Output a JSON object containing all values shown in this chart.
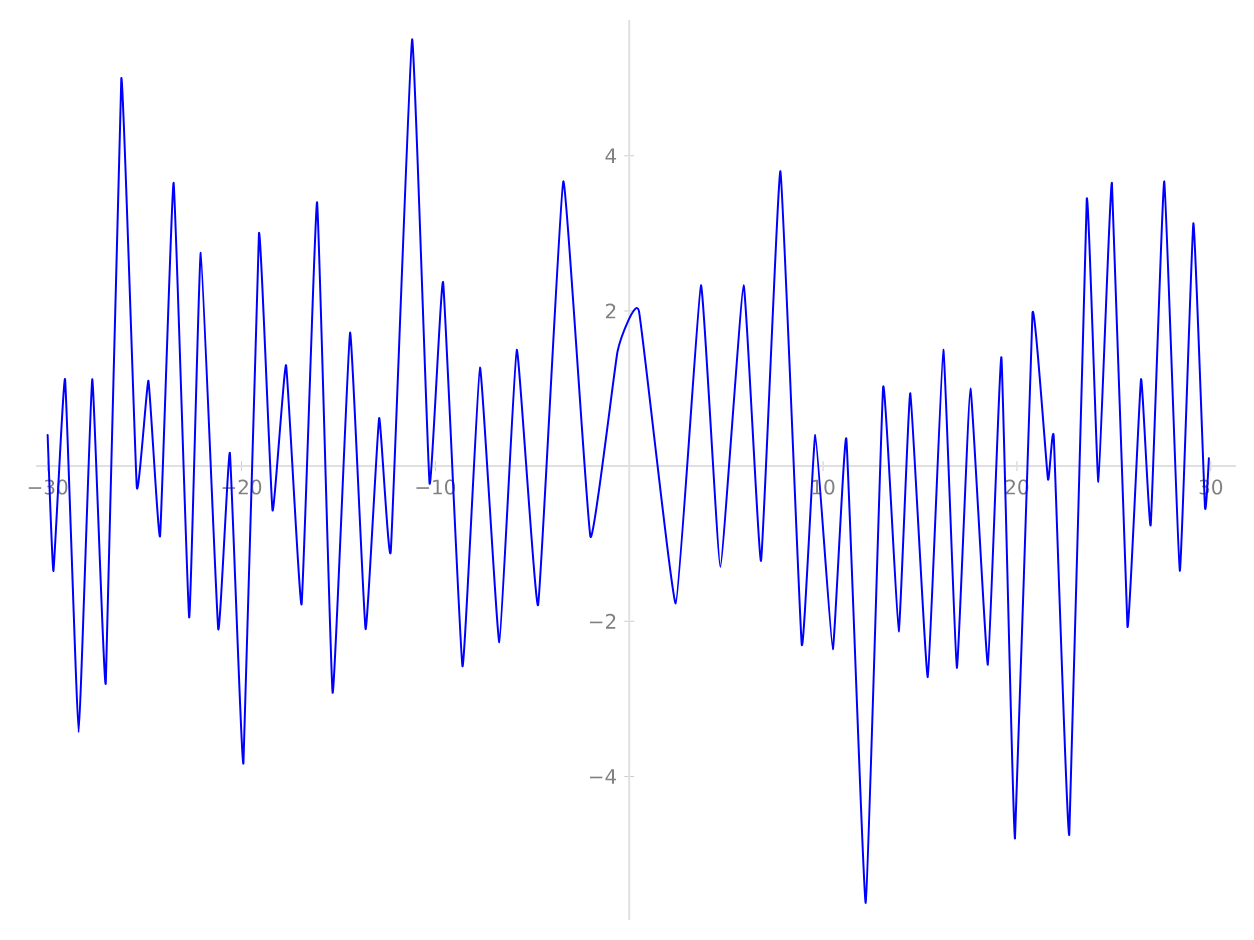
{
  "chart_data": {
    "type": "line",
    "x": [
      -30,
      -29.7,
      -29.1,
      -28.4,
      -27.7,
      -27.0,
      -26.2,
      -25.4,
      -24.8,
      -24.2,
      -23.5,
      -22.7,
      -22.1,
      -21.2,
      -20.6,
      -19.9,
      -19.1,
      -18.4,
      -17.7,
      -16.9,
      -16.1,
      -15.3,
      -14.4,
      -13.6,
      -12.9,
      -12.3,
      -11.2,
      -10.3,
      -9.6,
      -8.6,
      -7.7,
      -6.7,
      -5.8,
      -4.7,
      -3.4,
      -2.0,
      -0.6,
      0.5,
      2.4,
      3.7,
      4.7,
      5.9,
      6.8,
      7.8,
      8.9,
      9.6,
      10.5,
      11.2,
      12.2,
      13.1,
      13.9,
      14.5,
      15.4,
      16.2,
      16.9,
      17.6,
      18.5,
      19.2,
      19.9,
      20.8,
      21.6,
      21.9,
      22.7,
      23.6,
      24.2,
      24.9,
      25.7,
      26.4,
      26.9,
      27.6,
      28.4,
      29.1,
      29.7,
      29.9
    ],
    "series": [
      {
        "color": "#0000ff",
        "values": [
          0.4,
          -1.35,
          1.12,
          -3.43,
          1.12,
          -2.8,
          5.0,
          -0.27,
          1.1,
          -0.9,
          3.65,
          -1.95,
          2.75,
          -2.1,
          0.17,
          -3.83,
          3.0,
          -0.57,
          1.3,
          -1.78,
          3.4,
          -2.92,
          1.72,
          -2.1,
          0.62,
          -1.1,
          5.5,
          -0.22,
          2.37,
          -2.58,
          1.27,
          -2.27,
          1.5,
          -1.79,
          3.67,
          -0.91,
          1.48,
          2.0,
          -1.77,
          2.33,
          -1.3,
          2.33,
          -1.22,
          3.8,
          -2.3,
          0.4,
          -2.36,
          0.35,
          -5.63,
          1.02,
          -2.13,
          0.94,
          -2.72,
          1.5,
          -2.6,
          1.0,
          -2.56,
          1.4,
          -4.8,
          1.97,
          -0.17,
          0.37,
          -4.75,
          3.44,
          -0.2,
          3.65,
          -2.07,
          1.12,
          -0.76,
          3.67,
          -1.35,
          3.13,
          -0.53,
          0.1
        ]
      }
    ],
    "xlim": [
      -30.6,
      31.3
    ],
    "ylim": [
      -5.85,
      5.75
    ],
    "xticks": [
      {
        "value": -30,
        "label": "−30"
      },
      {
        "value": -20,
        "label": "−20"
      },
      {
        "value": -10,
        "label": "−10"
      },
      10,
      20,
      30
    ],
    "yticks": [
      {
        "value": -4,
        "label": "−4"
      },
      {
        "value": -2,
        "label": "−2"
      },
      2,
      4
    ],
    "grid": false,
    "marker": "none",
    "line_style": "solid"
  }
}
